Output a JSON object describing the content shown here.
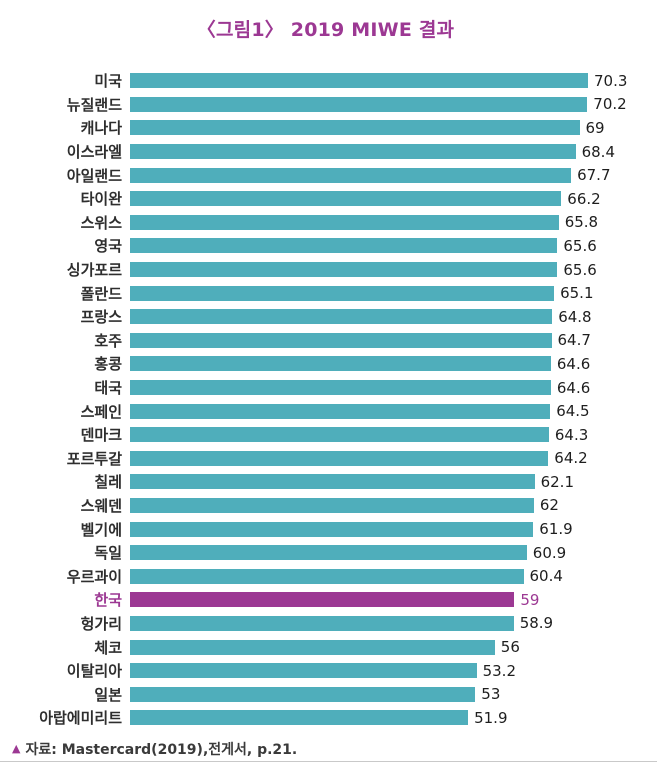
{
  "title": "〈그림1〉 2019 MIWE 결과",
  "source": {
    "marker": "▲",
    "text": "자료: Mastercard(2019),전게서, p.21."
  },
  "colors": {
    "bar": "#4faebb",
    "highlight": "#9c3893",
    "title": "#9c3893"
  },
  "chart_data": {
    "type": "bar",
    "orientation": "horizontal",
    "title": "〈그림1〉 2019 MIWE 결과",
    "xlabel": "",
    "ylabel": "",
    "xlim": [
      0,
      72
    ],
    "grid": false,
    "legend": false,
    "highlight_category": "한국",
    "categories": [
      "미국",
      "뉴질랜드",
      "캐나다",
      "이스라엘",
      "아일랜드",
      "타이완",
      "스위스",
      "영국",
      "싱가포르",
      "폴란드",
      "프랑스",
      "호주",
      "홍콩",
      "태국",
      "스페인",
      "덴마크",
      "포르투갈",
      "칠레",
      "스웨덴",
      "벨기에",
      "독일",
      "우르과이",
      "한국",
      "헝가리",
      "체코",
      "이탈리아",
      "일본",
      "아랍에미리트"
    ],
    "values": [
      70.3,
      70.2,
      69,
      68.4,
      67.7,
      66.2,
      65.8,
      65.6,
      65.6,
      65.1,
      64.8,
      64.7,
      64.6,
      64.6,
      64.5,
      64.3,
      64.2,
      62.1,
      62,
      61.9,
      60.9,
      60.4,
      59,
      58.9,
      56,
      53.2,
      53,
      51.9
    ],
    "value_labels": [
      "70.3",
      "70.2",
      "69",
      "68.4",
      "67.7",
      "66.2",
      "65.8",
      "65.6",
      "65.6",
      "65.1",
      "64.8",
      "64.7",
      "64.6",
      "64.6",
      "64.5",
      "64.3",
      "64.2",
      "62.1",
      "62",
      "61.9",
      "60.9",
      "60.4",
      "59",
      "58.9",
      "56",
      "53.2",
      "53",
      "51.9"
    ]
  }
}
